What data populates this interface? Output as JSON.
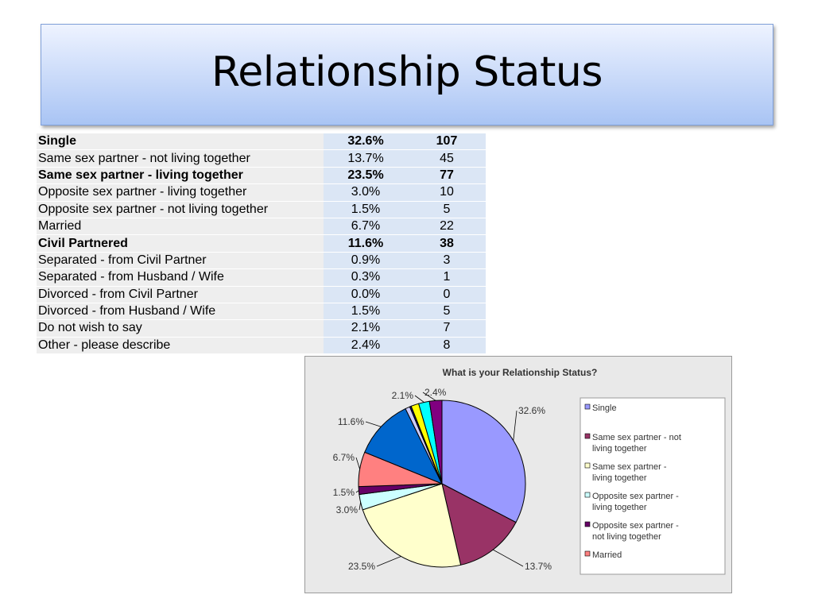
{
  "slide": {
    "title": "Relationship Status"
  },
  "table": {
    "rows": [
      {
        "label": "Single",
        "pct": "32.6%",
        "count": "107",
        "bold": true
      },
      {
        "label": "Same sex partner - not living together",
        "pct": "13.7%",
        "count": "45",
        "bold": false
      },
      {
        "label": "Same sex partner  - living together",
        "pct": "23.5%",
        "count": "77",
        "bold": true
      },
      {
        "label": "Opposite sex partner - living together",
        "pct": "3.0%",
        "count": "10",
        "bold": false
      },
      {
        "label": "Opposite sex partner - not living together",
        "pct": "1.5%",
        "count": "5",
        "bold": false
      },
      {
        "label": "Married",
        "pct": "6.7%",
        "count": "22",
        "bold": false
      },
      {
        "label": "Civil Partnered",
        "pct": "11.6%",
        "count": "38",
        "bold": true
      },
      {
        "label": "Separated  - from Civil Partner",
        "pct": "0.9%",
        "count": "3",
        "bold": false
      },
      {
        "label": "Separated  - from Husband / Wife",
        "pct": "0.3%",
        "count": "1",
        "bold": false
      },
      {
        "label": "Divorced - from Civil Partner",
        "pct": "0.0%",
        "count": "0",
        "bold": false
      },
      {
        "label": "Divorced - from Husband / Wife",
        "pct": "1.5%",
        "count": "5",
        "bold": false
      },
      {
        "label": "Do not wish to say",
        "pct": "2.1%",
        "count": "7",
        "bold": false
      },
      {
        "label": "Other - please describe",
        "pct": "2.4%",
        "count": "8",
        "bold": false
      }
    ]
  },
  "chart_data": {
    "type": "pie",
    "title": "What is your Relationship Status?",
    "slices": [
      {
        "name": "Single",
        "value": 32.6,
        "label": "32.6%",
        "color": "#9999ff",
        "show_label": true
      },
      {
        "name": "Same sex partner - not living together",
        "value": 13.7,
        "label": "13.7%",
        "color": "#993366",
        "show_label": true
      },
      {
        "name": "Same sex partner  - living together",
        "value": 23.5,
        "label": "23.5%",
        "color": "#ffffcc",
        "show_label": true
      },
      {
        "name": "Opposite sex partner - living together",
        "value": 3.0,
        "label": "3.0%",
        "color": "#ccffff",
        "show_label": true
      },
      {
        "name": "Opposite sex partner - not living together",
        "value": 1.5,
        "label": "1.5%",
        "color": "#660066",
        "show_label": true
      },
      {
        "name": "Married",
        "value": 6.7,
        "label": "6.7%",
        "color": "#ff8080",
        "show_label": true
      },
      {
        "name": "Civil Partnered",
        "value": 11.6,
        "label": "11.6%",
        "color": "#0066cc",
        "show_label": true
      },
      {
        "name": "Separated  - from Civil Partner",
        "value": 0.9,
        "label": "0.9%",
        "color": "#ccccff",
        "show_label": false
      },
      {
        "name": "Separated  - from Husband / Wife",
        "value": 0.3,
        "label": "0.3%",
        "color": "#000080",
        "show_label": false
      },
      {
        "name": "Divorced - from Civil Partner",
        "value": 0.0,
        "label": "0.0%",
        "color": "#ff00ff",
        "show_label": false
      },
      {
        "name": "Divorced - from Husband / Wife",
        "value": 1.5,
        "label": "1.5%",
        "color": "#ffff00",
        "show_label": false
      },
      {
        "name": "Do not wish to say",
        "value": 2.1,
        "label": "2.1%",
        "color": "#00ffff",
        "show_label": true
      },
      {
        "name": "Other - please describe",
        "value": 2.4,
        "label": "2.4%",
        "color": "#800080",
        "show_label": true
      }
    ],
    "legend": {
      "placement": "right",
      "entries": [
        {
          "text": "Single",
          "color": "#9999ff"
        },
        {
          "text": "Same sex partner - not living together",
          "color": "#993366"
        },
        {
          "text": "Same sex partner  - living together",
          "color": "#ffffcc"
        },
        {
          "text": "Opposite sex partner - living together",
          "color": "#ccffff"
        },
        {
          "text": "Opposite sex partner - not living together",
          "color": "#660066"
        },
        {
          "text": "Married",
          "color": "#ff8080"
        }
      ]
    }
  }
}
